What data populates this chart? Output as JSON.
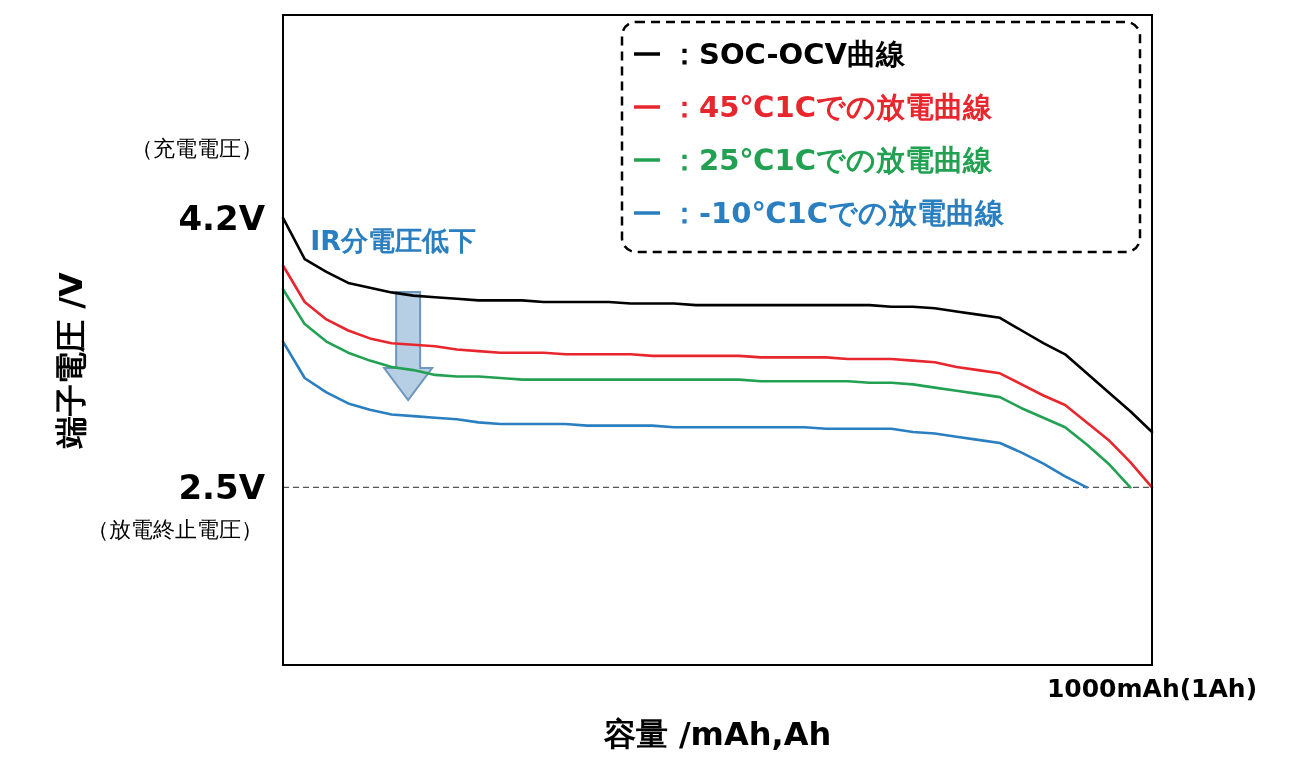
{
  "chart_data": {
    "type": "line",
    "xlabel": "容量 /mAh,Ah",
    "ylabel": "端子電圧 /V",
    "categories": [
      null,
      null,
      null,
      null,
      null,
      null,
      null,
      null,
      null,
      null,
      null,
      null,
      null,
      null,
      null,
      null,
      null,
      null,
      null,
      null,
      null,
      null,
      null,
      null,
      null,
      null,
      null,
      null,
      null,
      null,
      null,
      null,
      null,
      null,
      null,
      null,
      null,
      null,
      null,
      null,
      null
    ],
    "ylim": [
      1.38,
      5.48
    ],
    "yticks": [
      {
        "value": 4.2,
        "label": "4.2V"
      },
      {
        "value": 2.5,
        "label": "2.5V"
      }
    ],
    "grid": false,
    "legend": "top right",
    "marker": "none",
    "line_style": "solid",
    "series": [
      {
        "name": "：SOC-OCV曲線",
        "color": "#000000",
        "values": [
          4.2,
          3.94,
          3.86,
          3.79,
          3.76,
          3.73,
          3.71,
          3.7,
          3.69,
          3.68,
          3.68,
          3.68,
          3.67,
          3.67,
          3.67,
          3.67,
          3.66,
          3.66,
          3.66,
          3.65,
          3.65,
          3.65,
          3.65,
          3.65,
          3.65,
          3.65,
          3.65,
          3.65,
          3.64,
          3.64,
          3.63,
          3.61,
          3.59,
          3.57,
          3.49,
          3.41,
          3.34,
          3.22,
          3.1,
          2.98,
          2.85
        ]
      },
      {
        "name": "：45℃1Cでの放電曲線",
        "color": "#e8262d",
        "values": [
          3.9,
          3.67,
          3.56,
          3.49,
          3.44,
          3.41,
          3.4,
          3.39,
          3.37,
          3.36,
          3.35,
          3.35,
          3.35,
          3.34,
          3.34,
          3.34,
          3.34,
          3.33,
          3.33,
          3.33,
          3.33,
          3.33,
          3.32,
          3.32,
          3.32,
          3.32,
          3.31,
          3.31,
          3.31,
          3.3,
          3.29,
          3.26,
          3.24,
          3.22,
          3.15,
          3.08,
          3.02,
          2.91,
          2.8,
          2.66,
          2.5
        ]
      },
      {
        "name": "：25℃1Cでの放電曲線",
        "color": "#22a152",
        "values": [
          3.75,
          3.53,
          3.42,
          3.35,
          3.3,
          3.26,
          3.24,
          3.21,
          3.2,
          3.2,
          3.19,
          3.18,
          3.18,
          3.18,
          3.18,
          3.18,
          3.18,
          3.18,
          3.18,
          3.18,
          3.18,
          3.18,
          3.17,
          3.17,
          3.17,
          3.17,
          3.17,
          3.16,
          3.16,
          3.15,
          3.13,
          3.11,
          3.09,
          3.07,
          3.0,
          2.94,
          2.88,
          2.77,
          2.65,
          2.5,
          null
        ]
      },
      {
        "name": "：-10℃1Cでの放電曲線",
        "color": "#2a7fc0",
        "values": [
          3.42,
          3.19,
          3.1,
          3.03,
          2.99,
          2.96,
          2.95,
          2.94,
          2.93,
          2.91,
          2.9,
          2.9,
          2.9,
          2.9,
          2.89,
          2.89,
          2.89,
          2.89,
          2.88,
          2.88,
          2.88,
          2.88,
          2.88,
          2.88,
          2.88,
          2.87,
          2.87,
          2.87,
          2.87,
          2.85,
          2.84,
          2.82,
          2.8,
          2.78,
          2.72,
          2.65,
          2.57,
          2.5,
          null,
          null,
          null
        ]
      }
    ],
    "ref_lines": [
      {
        "axis": "y",
        "value": 2.5,
        "line_style": "dashed",
        "color": "#555555"
      }
    ],
    "annotations": [
      "（充電電圧）",
      "（放電終止電圧）",
      "1000mAh(1Ah)",
      "IR分電圧低下"
    ]
  }
}
